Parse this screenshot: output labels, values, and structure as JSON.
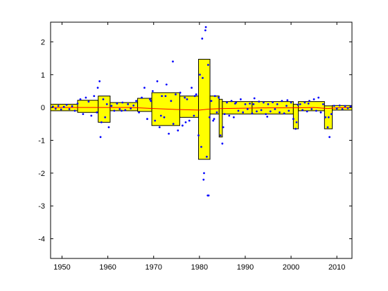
{
  "chart_data": {
    "type": "scatter",
    "title": "",
    "xlabel": "",
    "ylabel": "",
    "xlim": [
      1947.5,
      2013.3
    ],
    "ylim": [
      -4.6,
      2.6
    ],
    "grid": false,
    "x_ticks": [
      1950,
      1960,
      1970,
      1980,
      1990,
      2000,
      2010
    ],
    "x_tick_labels": [
      "1950",
      "1960",
      "1970",
      "1980",
      "1990",
      "2000",
      "2010"
    ],
    "y_ticks": [
      -4,
      -3,
      -2,
      -1,
      0,
      1,
      2
    ],
    "y_tick_labels": [
      "-4",
      "-3",
      "-2",
      "-1",
      "0",
      "1",
      "2"
    ],
    "colors": {
      "band_fill": "#ffff00",
      "band_edge": "#000000",
      "points": "#0000ff",
      "trend": "#ff0000"
    },
    "bands": [
      {
        "x0": 1947.5,
        "x1": 1953.4,
        "lo": -0.1,
        "hi": 0.1
      },
      {
        "x0": 1953.4,
        "x1": 1957.9,
        "lo": -0.15,
        "hi": 0.22
      },
      {
        "x0": 1957.9,
        "x1": 1960.5,
        "lo": -0.45,
        "hi": 0.35
      },
      {
        "x0": 1960.5,
        "x1": 1966.5,
        "lo": -0.1,
        "hi": 0.15
      },
      {
        "x0": 1966.5,
        "x1": 1969.6,
        "lo": -0.12,
        "hi": 0.28
      },
      {
        "x0": 1969.6,
        "x1": 1975.7,
        "lo": -0.55,
        "hi": 0.45
      },
      {
        "x0": 1975.7,
        "x1": 1979.8,
        "lo": -0.3,
        "hi": 0.35
      },
      {
        "x0": 1979.8,
        "x1": 1982.3,
        "lo": -1.58,
        "hi": 1.47
      },
      {
        "x0": 1982.3,
        "x1": 1984.3,
        "lo": -0.2,
        "hi": 0.35
      },
      {
        "x0": 1984.3,
        "x1": 1985.0,
        "lo": -0.9,
        "hi": 0.25
      },
      {
        "x0": 1985.0,
        "x1": 1991.5,
        "lo": -0.2,
        "hi": 0.18
      },
      {
        "x0": 1991.5,
        "x1": 2000.5,
        "lo": -0.2,
        "hi": 0.18
      },
      {
        "x0": 2000.5,
        "x1": 2001.6,
        "lo": -0.65,
        "hi": 0.1
      },
      {
        "x0": 2001.6,
        "x1": 2007.3,
        "lo": -0.1,
        "hi": 0.18
      },
      {
        "x0": 2007.3,
        "x1": 2009.0,
        "lo": -0.65,
        "hi": 0.05
      },
      {
        "x0": 2009.0,
        "x1": 2013.3,
        "lo": -0.08,
        "hi": 0.06
      }
    ],
    "trend": {
      "x": [
        1947.5,
        1955,
        1960,
        1965,
        1970,
        1975,
        1980,
        1982,
        1985,
        1990,
        1995,
        2000,
        2005,
        2008,
        2010,
        2013.3
      ],
      "y": [
        0.0,
        0.0,
        0.0,
        0.0,
        -0.03,
        -0.06,
        -0.08,
        -0.05,
        -0.03,
        -0.02,
        -0.01,
        -0.01,
        0.0,
        -0.03,
        -0.01,
        0.0
      ]
    },
    "points": {
      "x": [
        1948.0,
        1948.6,
        1949.2,
        1949.8,
        1950.4,
        1951.0,
        1951.6,
        1952.2,
        1952.8,
        1953.4,
        1954.0,
        1954.6,
        1955.2,
        1955.8,
        1956.4,
        1957.0,
        1957.6,
        1958.2,
        1958.6,
        1959.0,
        1959.4,
        1959.8,
        1960.2,
        1960.8,
        1961.4,
        1962.0,
        1962.6,
        1963.2,
        1963.8,
        1964.4,
        1965.0,
        1965.6,
        1966.2,
        1966.8,
        1967.4,
        1968.0,
        1968.6,
        1969.2,
        1969.8,
        1970.3,
        1970.8,
        1971.3,
        1971.8,
        1972.3,
        1972.8,
        1973.3,
        1973.8,
        1974.3,
        1974.8,
        1975.3,
        1975.8,
        1976.3,
        1976.8,
        1977.3,
        1977.8,
        1978.3,
        1978.8,
        1979.3,
        1979.8,
        1980.1,
        1980.4,
        1980.7,
        1981.0,
        1981.3,
        1981.6,
        1981.9,
        1982.2,
        1982.6,
        1983.0,
        1983.4,
        1983.8,
        1984.2,
        1984.6,
        1985.0,
        1985.5,
        1986.0,
        1986.5,
        1987.0,
        1987.5,
        1988.0,
        1988.5,
        1989.0,
        1989.5,
        1990.0,
        1990.5,
        1991.0,
        1991.5,
        1992.0,
        1992.5,
        1993.0,
        1993.5,
        1994.0,
        1994.5,
        1995.0,
        1995.5,
        1996.0,
        1996.5,
        1997.0,
        1997.5,
        1998.0,
        1998.5,
        1999.0,
        1999.5,
        2000.0,
        2000.5,
        2001.0,
        2001.5,
        2002.0,
        2002.5,
        2003.0,
        2003.5,
        2004.0,
        2004.5,
        2005.0,
        2005.5,
        2006.0,
        2006.5,
        2007.0,
        2007.5,
        2008.0,
        2008.4,
        2008.8,
        2009.4,
        2010.0,
        2010.6,
        2011.2,
        2011.8,
        2012.4,
        2013.0,
        1957.8,
        1958.4,
        1969.4,
        1971.6,
        1974.2,
        1977.0,
        1979.0,
        1980.6,
        1981.4,
        1981.8,
        1983.2,
        1985.2,
        1987.8,
        1991.8,
        1994.8,
        1999.2,
        2001.2,
        2003.8,
        2008.2,
        1963.0,
        1972.6,
        1980.9,
        1982.0
      ],
      "y": [
        0.03,
        -0.04,
        0.05,
        -0.06,
        0.02,
        0.08,
        -0.05,
        0.04,
        -0.1,
        0.12,
        0.25,
        -0.2,
        0.3,
        0.18,
        -0.25,
        0.35,
        -0.15,
        0.8,
        -0.45,
        0.25,
        -0.3,
        0.1,
        -0.6,
        0.05,
        -0.1,
        0.12,
        -0.05,
        0.15,
        -0.08,
        0.1,
        -0.03,
        0.06,
        0.2,
        -0.15,
        0.3,
        0.6,
        -0.35,
        0.25,
        0.5,
        -0.4,
        0.8,
        -0.6,
        0.35,
        -0.3,
        0.7,
        -0.8,
        0.2,
        -0.5,
        0.4,
        -0.7,
        0.45,
        -0.55,
        0.3,
        0.25,
        -0.4,
        0.6,
        -0.25,
        0.4,
        -0.85,
        1.0,
        -1.2,
        0.9,
        -2.0,
        2.35,
        -1.5,
        1.3,
        -0.3,
        0.2,
        -0.4,
        0.35,
        -0.15,
        0.3,
        -0.85,
        -1.1,
        -0.2,
        0.15,
        -0.25,
        0.2,
        -0.3,
        0.15,
        -0.1,
        0.25,
        -0.15,
        0.1,
        -0.05,
        0.12,
        -0.18,
        0.28,
        -0.12,
        0.18,
        -0.08,
        0.15,
        -0.2,
        0.1,
        -0.12,
        0.16,
        -0.05,
        0.1,
        -0.15,
        0.2,
        -0.18,
        0.05,
        -0.1,
        0.15,
        -0.35,
        -0.65,
        0.08,
        0.1,
        -0.08,
        0.15,
        -0.12,
        0.2,
        -0.05,
        0.25,
        -0.1,
        0.3,
        -0.15,
        0.1,
        -0.3,
        -0.6,
        -0.9,
        -0.2,
        0.05,
        -0.03,
        0.06,
        -0.05,
        0.04,
        -0.02,
        0.03,
        0.6,
        -0.9,
        0.2,
        -0.25,
        1.4,
        -0.45,
        0.35,
        2.1,
        2.45,
        -2.68,
        -0.35,
        -0.6,
        0.12,
        0.1,
        -0.28,
        0.22,
        -0.45,
        0.12,
        -0.3,
        -0.1,
        0.35,
        -2.2,
        -2.68
      ]
    }
  }
}
